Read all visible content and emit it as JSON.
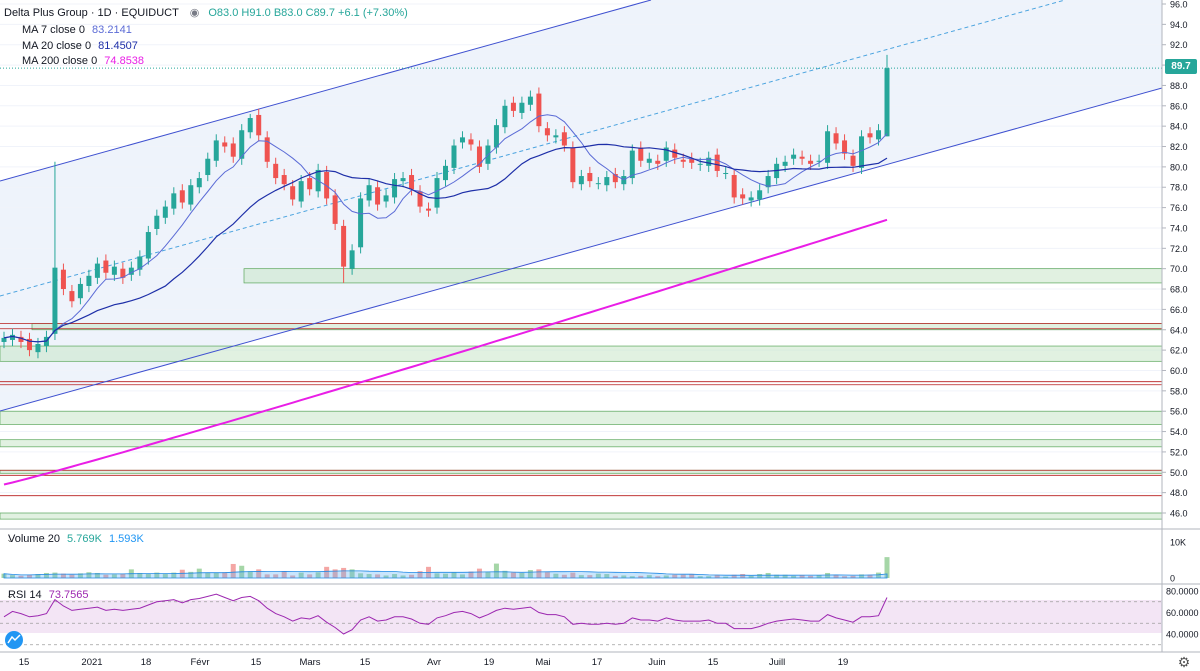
{
  "header": {
    "symbol": "Delta Plus Group · 1D · EQUIDUCT",
    "ohlc_o": "O83.0",
    "ohlc_h": "H91.0",
    "ohlc_b": "B83.0",
    "ohlc_c": "C89.7",
    "change": "+6.1 (+7.30%)"
  },
  "indicators": [
    {
      "label": "MA 7 close 0",
      "value": "83.2141",
      "color": "#5b6bd6"
    },
    {
      "label": "MA 20 close 0",
      "value": "81.4507",
      "color": "#1e2fa8"
    },
    {
      "label": "MA 200 close 0",
      "value": "74.8538",
      "color": "#e91ee6"
    }
  ],
  "volume_legend": {
    "label": "Volume 20",
    "v1": "5.769K",
    "v2": "1.593K"
  },
  "rsi_legend": {
    "label": "RSI 14",
    "value": "73.7565"
  },
  "last_price_label": "89.7",
  "colors": {
    "up": "#26a69a",
    "down": "#ef5350",
    "channel": "#3f51d0",
    "ma200": "#e91ee6",
    "ma20": "#1e2fa8",
    "ma7": "#5b6bd6",
    "rsi": "#9c27b0",
    "zone_fill": "#c8e6c9",
    "zone_border": "#5aa65a",
    "red_line": "#b71c1c"
  },
  "chart_data": {
    "type": "candlestick",
    "price_axis": {
      "min": 44,
      "max": 96,
      "ticks": [
        "96.0",
        "94.0",
        "92.0",
        "90.0",
        "88.0",
        "86.0",
        "84.0",
        "82.0",
        "80.0",
        "78.0",
        "76.0",
        "74.0",
        "72.0",
        "70.0",
        "68.0",
        "66.0",
        "64.0",
        "62.0",
        "60.0",
        "58.0",
        "56.0",
        "54.0",
        "52.0",
        "50.0",
        "48.0",
        "46.0"
      ]
    },
    "volume_axis": {
      "ticks": [
        "10K",
        "0"
      ]
    },
    "rsi_axis": {
      "ticks": [
        "80.0000",
        "60.0000",
        "40.0000"
      ]
    },
    "x_labels": [
      "15",
      "2021",
      "18",
      "Févr",
      "15",
      "Mars",
      "15",
      "Avr",
      "19",
      "Mai",
      "17",
      "Juin",
      "15",
      "Juill",
      "19"
    ],
    "closes": [
      63.2,
      63.5,
      62.8,
      62.0,
      62.6,
      63.3,
      70.1,
      68.0,
      66.8,
      68.5,
      69.3,
      70.5,
      69.6,
      70.2,
      69.1,
      70.1,
      71.2,
      73.6,
      75.2,
      76.1,
      77.4,
      76.5,
      78.2,
      78.9,
      80.8,
      82.6,
      82.0,
      81.0,
      83.6,
      84.8,
      83.1,
      80.5,
      78.9,
      78.3,
      76.8,
      78.6,
      77.8,
      79.7,
      76.9,
      74.4,
      70.2,
      71.8,
      76.9,
      78.2,
      76.3,
      77.2,
      78.8,
      78.9,
      77.8,
      76.1,
      75.7,
      78.9,
      80.1,
      82.1,
      82.9,
      82.2,
      80.0,
      82.1,
      84.1,
      86.0,
      85.5,
      86.3,
      86.9,
      84.0,
      83.1,
      83.1,
      82.1,
      78.5,
      79.1,
      78.6,
      78.4,
      79.0,
      78.5,
      79.1,
      81.6,
      80.6,
      80.8,
      80.3,
      81.9,
      80.9,
      80.5,
      80.4,
      80.3,
      80.9,
      79.6,
      79.4,
      77.0,
      76.9,
      77.0,
      77.7,
      79.1,
      80.3,
      80.5,
      81.2,
      80.8,
      80.3,
      80.6,
      83.5,
      82.3,
      81.3,
      80.1,
      83.0,
      82.9,
      83.6,
      89.7
    ],
    "rsi_values": [
      56,
      61,
      59,
      56,
      57,
      59,
      72,
      66,
      62,
      63,
      64,
      65,
      62,
      63,
      62,
      63,
      64,
      67,
      70,
      71,
      72,
      69,
      72,
      73,
      75,
      77,
      74,
      71,
      74,
      75,
      71,
      64,
      59,
      56,
      52,
      55,
      54,
      57,
      51,
      46,
      40,
      44,
      53,
      56,
      52,
      53,
      56,
      56,
      54,
      50,
      49,
      55,
      57,
      60,
      61,
      59,
      55,
      58,
      62,
      64,
      63,
      64,
      65,
      60,
      58,
      58,
      56,
      49,
      50,
      49,
      49,
      50,
      49,
      50,
      55,
      53,
      53,
      52,
      55,
      53,
      52,
      52,
      52,
      53,
      50,
      50,
      45,
      45,
      45,
      47,
      50,
      52,
      53,
      54,
      53,
      52,
      52,
      58,
      55,
      53,
      51,
      56,
      56,
      57,
      74
    ],
    "volume_k": [
      1.2,
      0.8,
      0.6,
      0.9,
      1.1,
      1.4,
      1.5,
      1.2,
      0.9,
      1.3,
      1.6,
      1.4,
      0.9,
      1.0,
      1.1,
      2.4,
      1.4,
      1.2,
      1.5,
      1.1,
      1.5,
      2.3,
      1.7,
      2.6,
      1.4,
      1.4,
      1.6,
      3.9,
      3.4,
      1.9,
      2.4,
      1.0,
      1.0,
      1.9,
      0.7,
      1.5,
      1.0,
      1.6,
      3.1,
      2.4,
      2.8,
      2.4,
      1.3,
      1.1,
      1.0,
      0.7,
      1.1,
      0.7,
      0.9,
      1.9,
      3.1,
      1.3,
      1.2,
      1.6,
      1.0,
      1.8,
      2.6,
      1.7,
      4.0,
      2.0,
      1.5,
      1.4,
      2.2,
      2.4,
      1.6,
      1.2,
      0.9,
      1.5,
      0.8,
      0.8,
      1.2,
      1.1,
      0.6,
      0.7,
      0.5,
      0.6,
      0.8,
      0.5,
      0.7,
      0.9,
      0.9,
      1.1,
      0.5,
      0.5,
      0.8,
      0.4,
      0.9,
      1.1,
      0.6,
      1.1,
      1.4,
      0.9,
      0.9,
      0.6,
      0.8,
      0.6,
      0.7,
      1.4,
      0.9,
      0.5,
      0.6,
      1.0,
      0.9,
      1.5,
      5.8
    ]
  }
}
